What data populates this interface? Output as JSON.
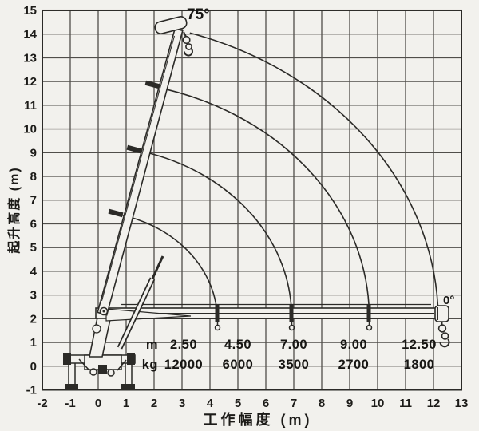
{
  "chart_data": {
    "type": "line",
    "title": "",
    "xlabel": "工作幅度 (m)",
    "ylabel": "起升高度 (m)",
    "xlim": [
      -2,
      13
    ],
    "ylim": [
      -1,
      15
    ],
    "x_ticks": [
      -2,
      -1,
      0,
      1,
      2,
      3,
      4,
      5,
      6,
      7,
      8,
      9,
      10,
      11,
      12,
      13
    ],
    "y_ticks": [
      -1,
      0,
      1,
      2,
      3,
      4,
      5,
      6,
      7,
      8,
      9,
      10,
      11,
      12,
      13,
      14,
      15
    ],
    "grid": true,
    "boom_angle_labels": {
      "up": "75°",
      "down": "0°"
    },
    "load_points": [
      {
        "radius_m": 2.5,
        "capacity_kg": 12000
      },
      {
        "radius_m": 4.5,
        "capacity_kg": 6000
      },
      {
        "radius_m": 7.0,
        "capacity_kg": 3500
      },
      {
        "radius_m": 9.0,
        "capacity_kg": 2700
      },
      {
        "radius_m": 12.5,
        "capacity_kg": 1800
      }
    ],
    "boom_tip_arcs": [
      {
        "radius_m": 4.6,
        "from": [
          0.64,
          6.42
        ],
        "to": [
          4.26,
          2.2
        ]
      },
      {
        "radius_m": 7.2,
        "from": [
          1.3,
          9.12
        ],
        "to": [
          6.92,
          2.2
        ]
      },
      {
        "radius_m": 10.0,
        "from": [
          1.93,
          11.8
        ],
        "to": [
          9.7,
          2.2
        ]
      },
      {
        "radius_m": 12.7,
        "from": [
          3.28,
          14.05
        ],
        "to": [
          12.16,
          2.45
        ]
      }
    ],
    "colors": {
      "background": "#f2f1ed",
      "grid": "#504e4a",
      "line": "#2b2a27",
      "text": "#1c1b18"
    }
  },
  "load_table": {
    "unit_radius": "m",
    "unit_capacity": "kg",
    "radii": [
      "2.50",
      "4.50",
      "7.00",
      "9.00",
      "12.50"
    ],
    "capacities": [
      "12000",
      "6000",
      "3500",
      "2700",
      "1800"
    ]
  }
}
